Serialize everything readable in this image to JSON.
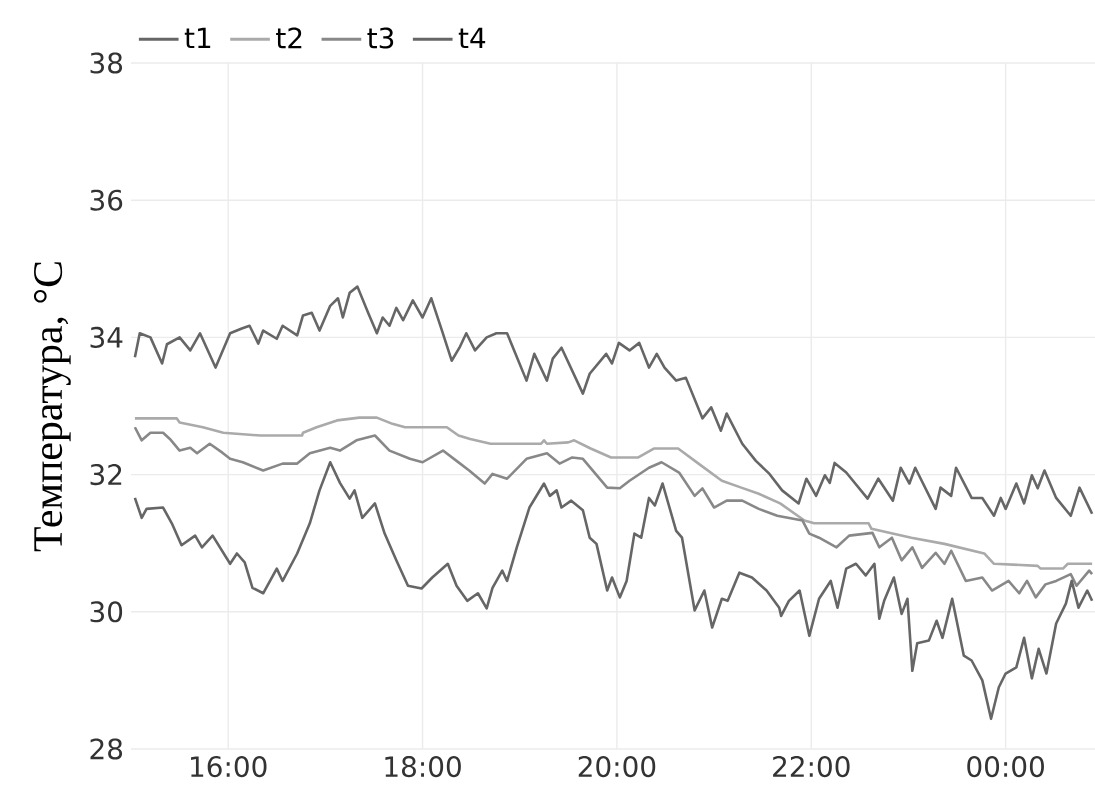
{
  "chart_data": {
    "type": "line",
    "ylabel": "Температура, °C",
    "xlim": [
      15,
      24.92
    ],
    "ylim": [
      28,
      38
    ],
    "xticks": [
      {
        "value": 16,
        "label": "16:00"
      },
      {
        "value": 18,
        "label": "18:00"
      },
      {
        "value": 20,
        "label": "20:00"
      },
      {
        "value": 22,
        "label": "22:00"
      },
      {
        "value": 24,
        "label": "00:00"
      }
    ],
    "yticks": [
      28,
      30,
      32,
      34,
      36,
      38
    ],
    "grid": true,
    "legend": "top left",
    "line_style": "solid",
    "series": [
      {
        "name": "t1",
        "color": "#666666",
        "x": [
          15.04,
          15.09,
          15.2,
          15.32,
          15.37,
          15.5,
          15.61,
          15.71,
          15.87,
          16.02,
          16.14,
          16.22,
          16.31,
          16.36,
          16.5,
          16.56,
          16.71,
          16.77,
          16.86,
          16.94,
          17.05,
          17.13,
          17.18,
          17.25,
          17.33,
          17.44,
          17.53,
          17.59,
          17.66,
          17.73,
          17.8,
          17.9,
          18.0,
          18.09,
          18.2,
          18.3,
          18.38,
          18.45,
          18.54,
          18.66,
          18.76,
          18.87,
          19.07,
          19.15,
          19.28,
          19.34,
          19.43,
          19.65,
          19.72,
          19.89,
          19.95,
          20.02,
          20.13,
          20.23,
          20.33,
          20.41,
          20.49,
          20.61,
          20.71,
          20.88,
          20.97,
          21.07,
          21.13,
          21.29,
          21.43,
          21.57,
          21.7,
          21.87,
          21.95,
          22.05,
          22.14,
          22.19,
          22.24,
          22.36,
          22.58,
          22.69,
          22.84,
          22.92,
          23.01,
          23.07,
          23.28,
          23.33,
          23.44,
          23.49,
          23.65,
          23.76,
          23.88,
          23.95,
          24.0,
          24.11,
          24.19,
          24.27,
          24.33,
          24.4,
          24.52,
          24.67,
          24.76,
          24.89
        ],
        "values": [
          33.71,
          34.06,
          34.0,
          33.62,
          33.9,
          34.0,
          33.81,
          34.06,
          33.56,
          34.06,
          34.13,
          34.17,
          33.91,
          34.1,
          33.98,
          34.17,
          34.03,
          34.32,
          34.36,
          34.1,
          34.46,
          34.57,
          34.29,
          34.65,
          34.74,
          34.36,
          34.06,
          34.29,
          34.17,
          34.43,
          34.25,
          34.54,
          34.29,
          34.57,
          34.1,
          33.66,
          33.85,
          34.06,
          33.81,
          34.0,
          34.06,
          34.06,
          33.37,
          33.76,
          33.37,
          33.69,
          33.85,
          33.18,
          33.47,
          33.76,
          33.62,
          33.92,
          33.81,
          33.92,
          33.56,
          33.76,
          33.56,
          33.37,
          33.41,
          32.82,
          32.98,
          32.64,
          32.89,
          32.45,
          32.2,
          32.01,
          31.77,
          31.58,
          31.94,
          31.69,
          31.99,
          31.88,
          32.17,
          32.03,
          31.65,
          31.94,
          31.62,
          32.1,
          31.87,
          32.1,
          31.5,
          31.81,
          31.69,
          32.1,
          31.66,
          31.66,
          31.4,
          31.66,
          31.5,
          31.87,
          31.58,
          31.99,
          31.8,
          32.06,
          31.66,
          31.4,
          31.81,
          31.43
        ]
      },
      {
        "name": "t2",
        "color": "#aaaaaa",
        "x": [
          15.04,
          15.47,
          15.5,
          15.74,
          15.95,
          16.33,
          16.76,
          16.77,
          16.91,
          17.12,
          17.35,
          17.53,
          17.69,
          17.82,
          18.25,
          18.37,
          18.49,
          18.7,
          19.22,
          19.25,
          19.28,
          19.5,
          19.56,
          19.73,
          19.94,
          20.22,
          20.38,
          20.63,
          20.84,
          21.08,
          21.28,
          21.46,
          21.68,
          21.93,
          22.03,
          22.59,
          22.62,
          23.03,
          23.37,
          23.78,
          23.88,
          24.33,
          24.36,
          24.59,
          24.64,
          24.89
        ],
        "values": [
          32.82,
          32.82,
          32.76,
          32.69,
          32.61,
          32.57,
          32.57,
          32.61,
          32.69,
          32.79,
          32.83,
          32.83,
          32.74,
          32.69,
          32.69,
          32.57,
          32.52,
          32.45,
          32.45,
          32.5,
          32.45,
          32.47,
          32.5,
          32.38,
          32.25,
          32.25,
          32.38,
          32.38,
          32.16,
          31.91,
          31.81,
          31.72,
          31.58,
          31.33,
          31.29,
          31.29,
          31.21,
          31.08,
          30.99,
          30.85,
          30.7,
          30.67,
          30.63,
          30.63,
          30.7,
          30.7
        ]
      },
      {
        "name": "t3",
        "color": "#888888",
        "x": [
          15.04,
          15.11,
          15.2,
          15.33,
          15.4,
          15.5,
          15.61,
          15.68,
          15.81,
          15.94,
          16.02,
          16.15,
          16.36,
          16.56,
          16.71,
          16.84,
          17.05,
          17.15,
          17.32,
          17.51,
          17.66,
          17.87,
          18.0,
          18.21,
          18.35,
          18.48,
          18.64,
          18.72,
          18.87,
          19.07,
          19.28,
          19.41,
          19.54,
          19.65,
          19.9,
          20.03,
          20.13,
          20.33,
          20.46,
          20.64,
          20.8,
          20.88,
          21.0,
          21.13,
          21.29,
          21.46,
          21.65,
          21.91,
          21.98,
          22.08,
          22.26,
          22.39,
          22.63,
          22.7,
          22.83,
          22.93,
          23.04,
          23.14,
          23.28,
          23.37,
          23.44,
          23.59,
          23.76,
          23.86,
          24.03,
          24.14,
          24.22,
          24.31,
          24.41,
          24.52,
          24.67,
          24.73,
          24.86,
          24.89
        ],
        "values": [
          32.69,
          32.5,
          32.61,
          32.61,
          32.52,
          32.35,
          32.39,
          32.31,
          32.45,
          32.32,
          32.23,
          32.18,
          32.06,
          32.16,
          32.16,
          32.31,
          32.39,
          32.35,
          32.5,
          32.57,
          32.35,
          32.23,
          32.18,
          32.35,
          32.2,
          32.06,
          31.87,
          32.01,
          31.94,
          32.23,
          32.31,
          32.16,
          32.25,
          32.23,
          31.81,
          31.8,
          31.91,
          32.1,
          32.18,
          32.03,
          31.69,
          31.8,
          31.52,
          31.62,
          31.62,
          31.5,
          31.4,
          31.33,
          31.14,
          31.08,
          30.94,
          31.11,
          31.15,
          30.94,
          31.08,
          30.75,
          30.94,
          30.64,
          30.86,
          30.7,
          30.89,
          30.45,
          30.5,
          30.31,
          30.45,
          30.27,
          30.45,
          30.21,
          30.4,
          30.45,
          30.55,
          30.38,
          30.6,
          30.55
        ]
      },
      {
        "name": "t4",
        "color": "#666666",
        "x": [
          15.04,
          15.11,
          15.16,
          15.33,
          15.42,
          15.52,
          15.66,
          15.73,
          15.84,
          16.02,
          16.09,
          16.17,
          16.25,
          16.36,
          16.5,
          16.56,
          16.71,
          16.84,
          16.94,
          17.05,
          17.15,
          17.25,
          17.3,
          17.38,
          17.51,
          17.61,
          17.73,
          17.85,
          17.99,
          18.1,
          18.26,
          18.35,
          18.46,
          18.57,
          18.66,
          18.72,
          18.82,
          18.87,
          18.97,
          19.1,
          19.25,
          19.31,
          19.38,
          19.43,
          19.53,
          19.65,
          19.72,
          19.79,
          19.9,
          19.95,
          20.03,
          20.1,
          20.18,
          20.25,
          20.33,
          20.39,
          20.47,
          20.61,
          20.67,
          20.8,
          20.9,
          20.98,
          21.08,
          21.14,
          21.26,
          21.39,
          21.54,
          21.67,
          21.69,
          21.77,
          21.88,
          21.98,
          22.08,
          22.2,
          22.27,
          22.36,
          22.46,
          22.56,
          22.65,
          22.7,
          22.75,
          22.85,
          22.93,
          22.99,
          23.04,
          23.09,
          23.21,
          23.29,
          23.35,
          23.45,
          23.57,
          23.65,
          23.76,
          23.85,
          23.93,
          24.0,
          24.11,
          24.19,
          24.27,
          24.34,
          24.42,
          24.52,
          24.62,
          24.68,
          24.75,
          24.84,
          24.89
        ],
        "values": [
          31.66,
          31.37,
          31.5,
          31.52,
          31.29,
          30.97,
          31.11,
          30.94,
          31.11,
          30.7,
          30.85,
          30.72,
          30.35,
          30.27,
          30.63,
          30.45,
          30.85,
          31.29,
          31.77,
          32.18,
          31.88,
          31.65,
          31.77,
          31.37,
          31.58,
          31.14,
          30.75,
          30.38,
          30.34,
          30.5,
          30.7,
          30.38,
          30.16,
          30.27,
          30.05,
          30.35,
          30.6,
          30.45,
          30.94,
          31.52,
          31.87,
          31.69,
          31.77,
          31.52,
          31.62,
          31.48,
          31.08,
          30.99,
          30.31,
          30.5,
          30.21,
          30.45,
          31.14,
          31.08,
          31.66,
          31.55,
          31.87,
          31.18,
          31.08,
          30.02,
          30.31,
          29.77,
          30.19,
          30.16,
          30.57,
          30.5,
          30.31,
          30.06,
          29.94,
          30.16,
          30.31,
          29.65,
          30.19,
          30.45,
          30.06,
          30.63,
          30.7,
          30.53,
          30.7,
          29.9,
          30.16,
          30.5,
          29.97,
          30.19,
          29.14,
          29.54,
          29.58,
          29.87,
          29.62,
          30.19,
          29.36,
          29.29,
          29.0,
          28.44,
          28.9,
          29.1,
          29.19,
          29.62,
          29.03,
          29.46,
          29.1,
          29.83,
          30.12,
          30.45,
          30.06,
          30.31,
          30.16
        ]
      }
    ]
  }
}
